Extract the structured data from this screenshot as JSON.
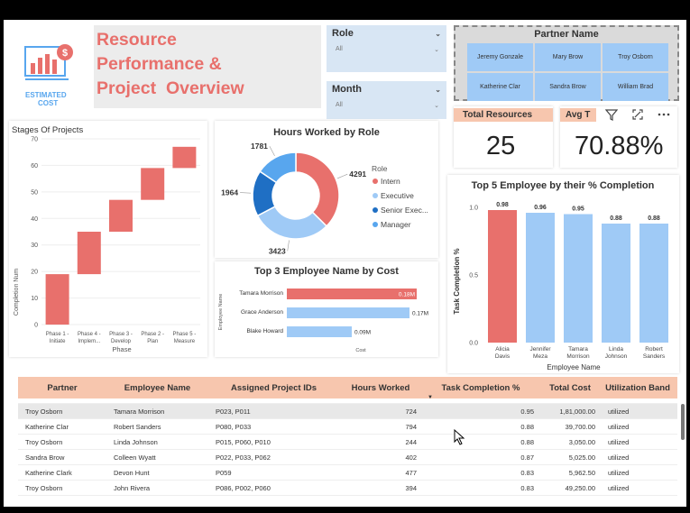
{
  "header": {
    "logo_text_1": "ESTIMATED",
    "logo_text_2": "COST",
    "title_line1": "Resource",
    "title_line2": "Performance &",
    "title_line3": "Project  Overview"
  },
  "slicers": {
    "role": {
      "label": "Role",
      "value": "All"
    },
    "month": {
      "label": "Month",
      "value": "All"
    }
  },
  "partner_slicer": {
    "label": "Partner Name",
    "options": [
      "Jeremy Gonzale",
      "Mary Brow",
      "Troy Osborn",
      "Katherine Clar",
      "Sandra Brow",
      "William Brad"
    ]
  },
  "kpis": {
    "total_resources": {
      "label": "Total Resources",
      "value": "25"
    },
    "avg_task": {
      "label": "Avg T",
      "value": "70.88%"
    }
  },
  "colors": {
    "accent": "#e8706c",
    "light_blue": "#9fcaf6",
    "peach": "#f7c6ae",
    "dark_blue": "#1f6fc4",
    "mid_blue": "#58a6ee"
  },
  "chart_data": [
    {
      "id": "stages",
      "type": "bar",
      "subtype": "waterfall",
      "title": "Stages Of Projects",
      "xlabel": "Phase",
      "ylabel": "Completion Num",
      "ylim": [
        0,
        70
      ],
      "yticks": [
        "0",
        "10",
        "20",
        "30",
        "40",
        "50",
        "60",
        "70"
      ],
      "categories": [
        "Phase 1 - Initiate",
        "Phase 4 - Implem...",
        "Phase 3 - Develop",
        "Phase 2 - Plan",
        "Phase 5 - Measure"
      ],
      "cat_lines": [
        [
          "Phase 1 -",
          "Initiate"
        ],
        [
          "Phase 4 -",
          "Implem..."
        ],
        [
          "Phase 3 -",
          "Develop"
        ],
        [
          "Phase 2 -",
          "Plan"
        ],
        [
          "Phase 5 -",
          "Measure"
        ]
      ],
      "ranges": [
        [
          0,
          19
        ],
        [
          19,
          35
        ],
        [
          35,
          47
        ],
        [
          47,
          59
        ],
        [
          59,
          67
        ]
      ]
    },
    {
      "id": "hours_by_role",
      "type": "pie",
      "subtype": "donut",
      "title": "Hours Worked by Role",
      "legend_title": "Role",
      "categories": [
        "Intern",
        "Executive",
        "Senior Exec...",
        "Manager"
      ],
      "values": [
        4291,
        3423,
        1964,
        1781
      ],
      "labels": [
        "4291",
        "3423",
        "1964",
        "1781"
      ],
      "colors": [
        "#e8706c",
        "#9fcaf6",
        "#1f6fc4",
        "#58a6ee"
      ]
    },
    {
      "id": "top3_cost",
      "type": "bar",
      "orientation": "horizontal",
      "title": "Top 3 Employee Name by Cost",
      "xlabel": "Cost",
      "ylabel": "Employee Name",
      "categories": [
        "Tamara Morrison",
        "Grace Anderson",
        "Blake Howard"
      ],
      "values": [
        0.18,
        0.17,
        0.09
      ],
      "labels": [
        "0.18M",
        "0.17M",
        "0.09M"
      ],
      "colors": [
        "#e8706c",
        "#9fcaf6",
        "#9fcaf6"
      ],
      "xlim": [
        0,
        0.19
      ]
    },
    {
      "id": "top5_completion",
      "type": "bar",
      "title": "Top 5 Employee by their % Completion",
      "xlabel": "Employee Name",
      "ylabel": "Task Completion %",
      "ylim": [
        0,
        1.0
      ],
      "yticks": [
        "0.0",
        "0.5",
        "1.0"
      ],
      "categories": [
        "Alicia Davis",
        "Jennifer Meza",
        "Tamara Morrison",
        "Linda Johnson",
        "Robert Sanders"
      ],
      "cat_lines": [
        [
          "Alicia",
          "Davis"
        ],
        [
          "Jennifer",
          "Meza"
        ],
        [
          "Tamara",
          "Morrison"
        ],
        [
          "Linda",
          "Johnson"
        ],
        [
          "Robert",
          "Sanders"
        ]
      ],
      "values": [
        0.98,
        0.96,
        0.95,
        0.88,
        0.88
      ],
      "labels": [
        "0.98",
        "0.96",
        "0.95",
        "0.88",
        "0.88"
      ],
      "colors": [
        "#e8706c",
        "#9fcaf6",
        "#9fcaf6",
        "#9fcaf6",
        "#9fcaf6"
      ]
    }
  ],
  "table": {
    "columns": [
      "Partner",
      "Employee Name",
      "Assigned Project IDs",
      "Hours Worked",
      "Task Completion %",
      "Total Cost",
      "Utilization Band"
    ],
    "rows": [
      [
        "Troy Osborn",
        "Tamara Morrison",
        "P023, P011",
        "724",
        "0.95",
        "1,81,000.00",
        "utilized"
      ],
      [
        "Katherine Clar",
        "Robert Sanders",
        "P080, P033",
        "794",
        "0.88",
        "39,700.00",
        "utilized"
      ],
      [
        "Troy Osborn",
        "Linda Johnson",
        "P015, P060, P010",
        "244",
        "0.88",
        "3,050.00",
        "utilized"
      ],
      [
        "Sandra Brow",
        "Colleen Wyatt",
        "P022, P033, P062",
        "402",
        "0.87",
        "5,025.00",
        "utilized"
      ],
      [
        "Katherine Clark",
        "Devon Hunt",
        "P059",
        "477",
        "0.83",
        "5,962.50",
        "utilized"
      ],
      [
        "Troy Osborn",
        "John Rivera",
        "P086, P002, P060",
        "394",
        "0.83",
        "49,250.00",
        "utilized"
      ]
    ]
  }
}
